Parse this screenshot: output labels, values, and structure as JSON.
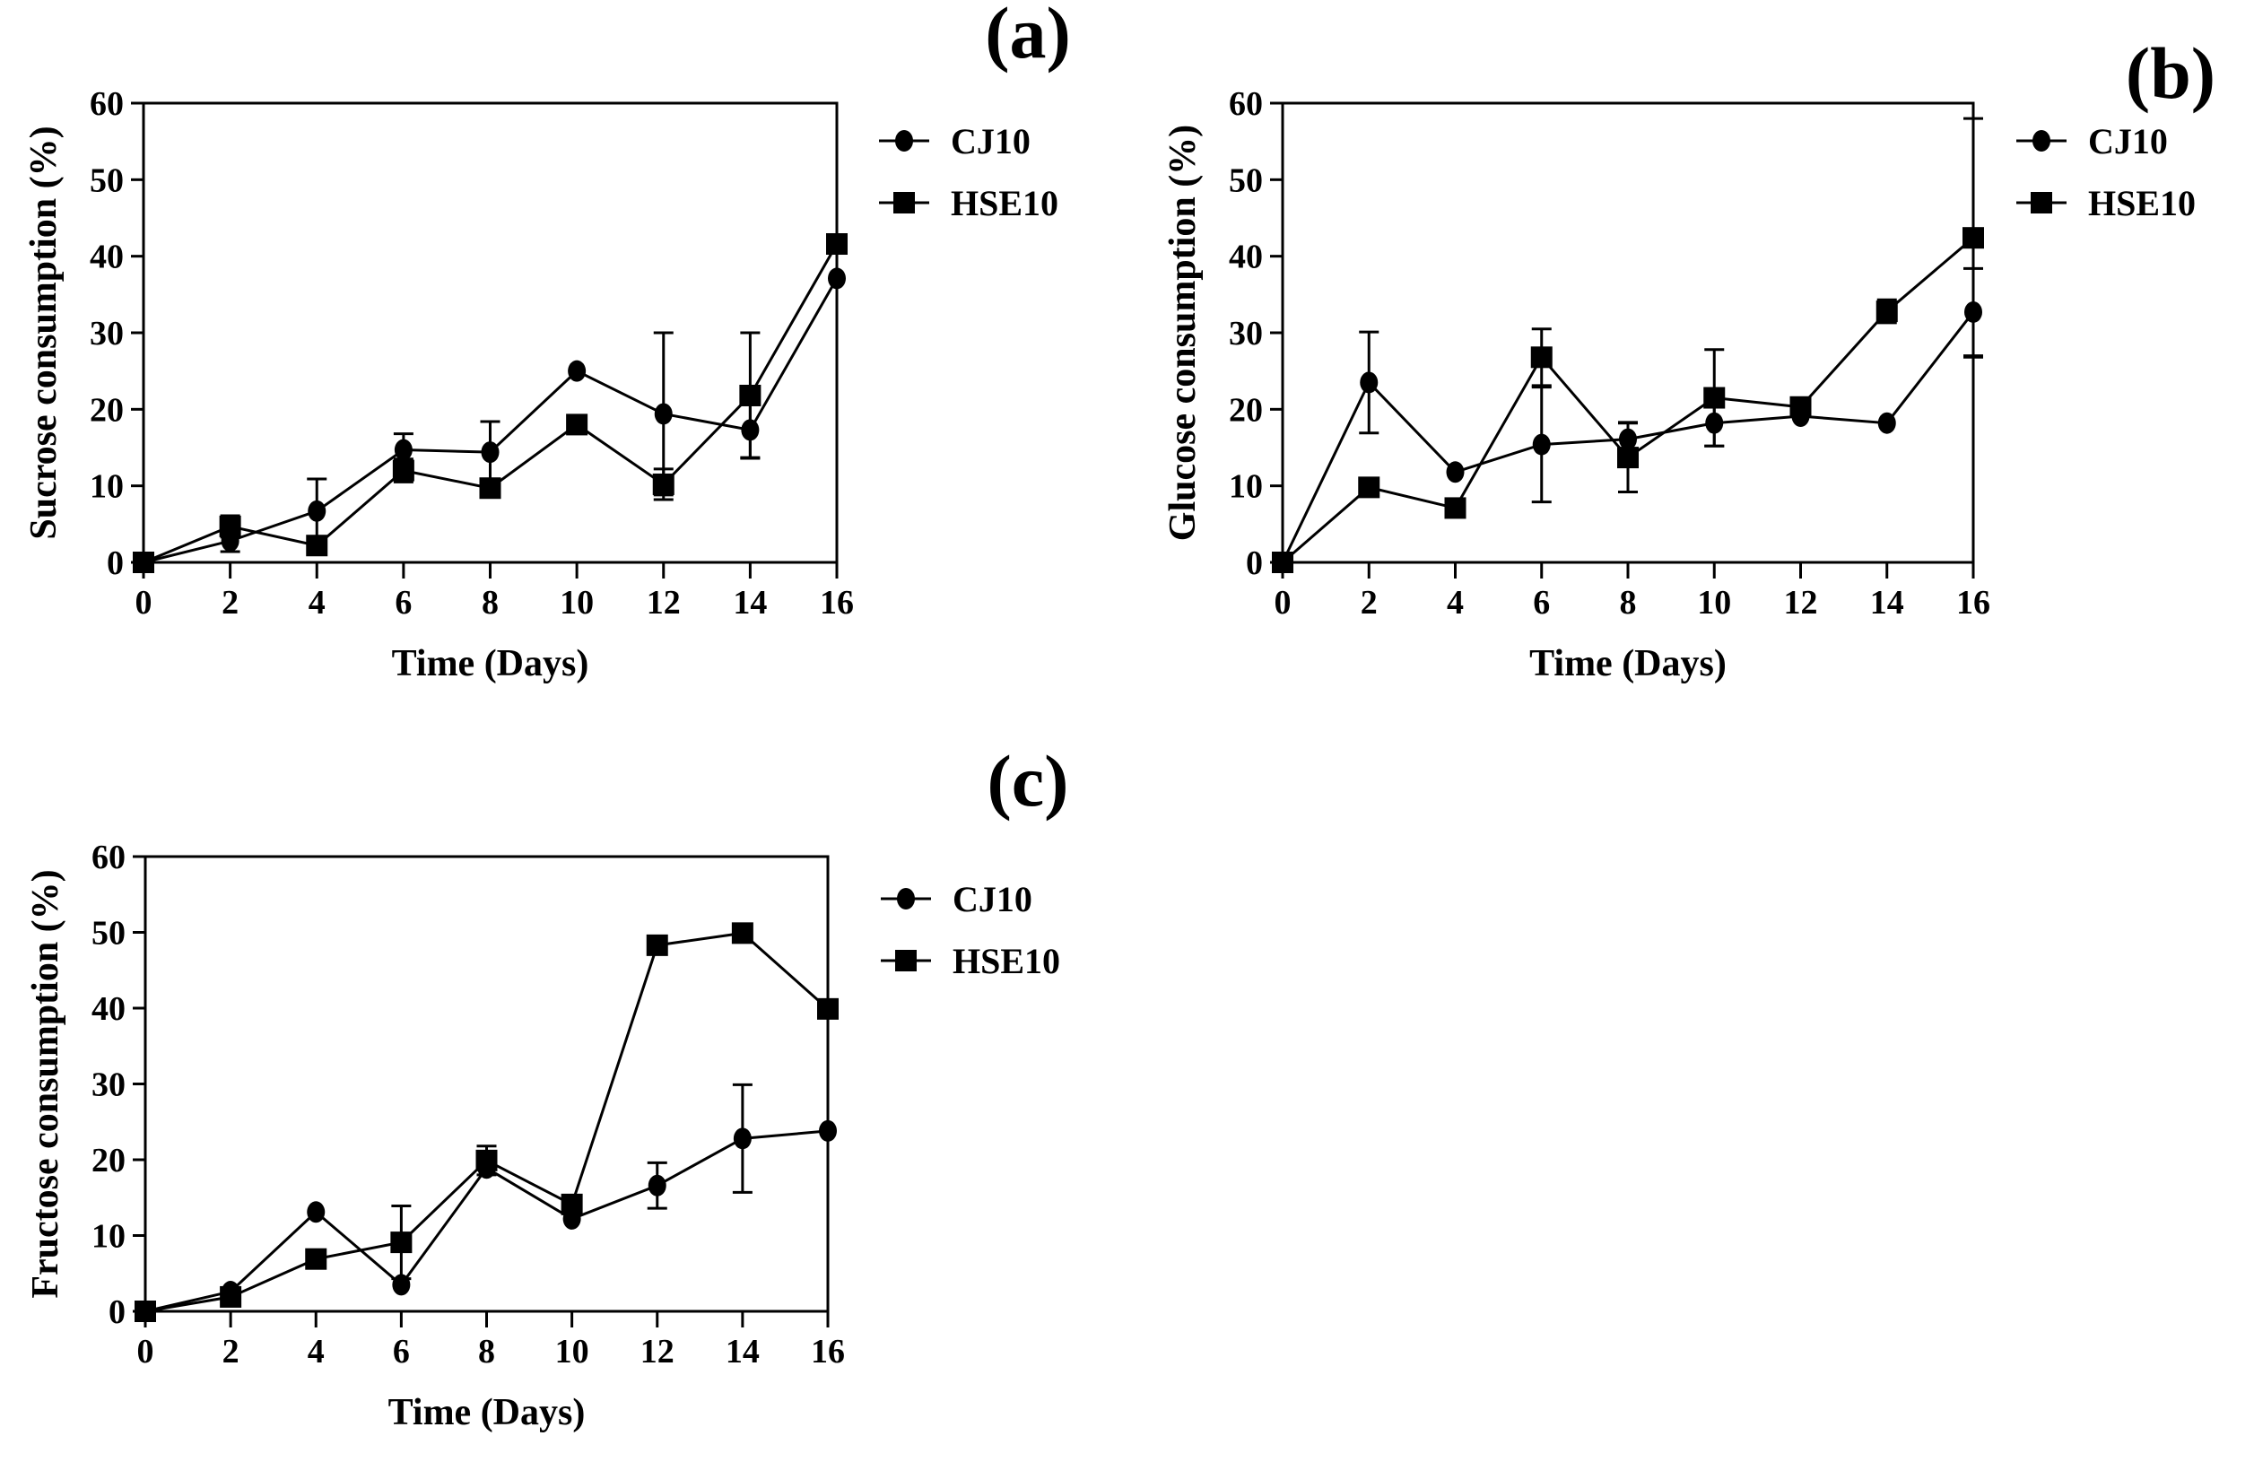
{
  "chart_data": [
    {
      "type": "line",
      "panel_label": "(a)",
      "xlabel": "Time (Days)",
      "ylabel": "Sucrose consumption (%)",
      "x": [
        0,
        2,
        4,
        6,
        8,
        10,
        12,
        14,
        16
      ],
      "xlim": [
        0,
        16
      ],
      "ylim": [
        0,
        60
      ],
      "xticks": [
        "0",
        "2",
        "4",
        "6",
        "8",
        "10",
        "12",
        "14",
        "16"
      ],
      "yticks": [
        "0",
        "10",
        "20",
        "30",
        "40",
        "50",
        "60"
      ],
      "grid": false,
      "legend_position": "right",
      "series": [
        {
          "name": "CJ10",
          "marker": "circle",
          "values": [
            0,
            2.8,
            6.7,
            14.7,
            14.4,
            25.0,
            19.4,
            17.3,
            37.1
          ],
          "error": [
            0,
            1.4,
            4.2,
            2.1,
            4.0,
            0,
            10.6,
            3.6,
            0
          ]
        },
        {
          "name": "HSE10",
          "marker": "square",
          "values": [
            0,
            4.7,
            2.2,
            12.0,
            9.7,
            18.0,
            10.2,
            21.8,
            41.6
          ],
          "error": [
            0,
            1.4,
            0,
            1.5,
            0,
            0,
            2.0,
            8.2,
            0
          ]
        }
      ]
    },
    {
      "type": "line",
      "panel_label": "(b)",
      "xlabel": "Time (Days)",
      "ylabel": "Glucose consumption (%)",
      "x": [
        0,
        2,
        4,
        6,
        8,
        10,
        12,
        14,
        16
      ],
      "xlim": [
        0,
        16
      ],
      "ylim": [
        0,
        60
      ],
      "xticks": [
        "0",
        "2",
        "4",
        "6",
        "8",
        "10",
        "12",
        "14",
        "16"
      ],
      "yticks": [
        "0",
        "10",
        "20",
        "30",
        "40",
        "50",
        "60"
      ],
      "grid": false,
      "legend_position": "right",
      "series": [
        {
          "name": "CJ10",
          "marker": "circle",
          "values": [
            0,
            23.5,
            11.8,
            15.4,
            16.1,
            18.2,
            19.1,
            18.2,
            32.7
          ],
          "error": [
            0,
            6.6,
            0,
            7.5,
            2.2,
            3.0,
            0,
            0,
            5.7
          ]
        },
        {
          "name": "HSE10",
          "marker": "square",
          "values": [
            0,
            9.8,
            7.1,
            26.8,
            13.7,
            21.5,
            20.3,
            32.8,
            42.4
          ],
          "error": [
            0,
            0,
            0,
            3.7,
            4.5,
            6.3,
            0,
            1.5,
            15.6
          ]
        }
      ]
    },
    {
      "type": "line",
      "panel_label": "(c)",
      "xlabel": "Time (Days)",
      "ylabel": "Fructose consumption (%)",
      "x": [
        0,
        2,
        4,
        6,
        8,
        10,
        12,
        14,
        16
      ],
      "xlim": [
        0,
        16
      ],
      "ylim": [
        0,
        60
      ],
      "xticks": [
        "0",
        "2",
        "4",
        "6",
        "8",
        "10",
        "12",
        "14",
        "16"
      ],
      "yticks": [
        "0",
        "10",
        "20",
        "30",
        "40",
        "50",
        "60"
      ],
      "grid": false,
      "legend_position": "right",
      "series": [
        {
          "name": "CJ10",
          "marker": "circle",
          "values": [
            0,
            2.6,
            13.1,
            3.5,
            18.9,
            12.2,
            16.6,
            22.8,
            23.8
          ],
          "error": [
            0,
            0,
            0,
            0,
            0,
            0,
            3.0,
            7.1,
            0
          ]
        },
        {
          "name": "HSE10",
          "marker": "square",
          "values": [
            0,
            1.9,
            6.9,
            9.1,
            19.9,
            14.1,
            48.3,
            49.9,
            39.9
          ],
          "error": [
            0,
            0,
            0,
            4.8,
            1.9,
            0,
            0,
            0,
            0
          ]
        }
      ]
    }
  ]
}
